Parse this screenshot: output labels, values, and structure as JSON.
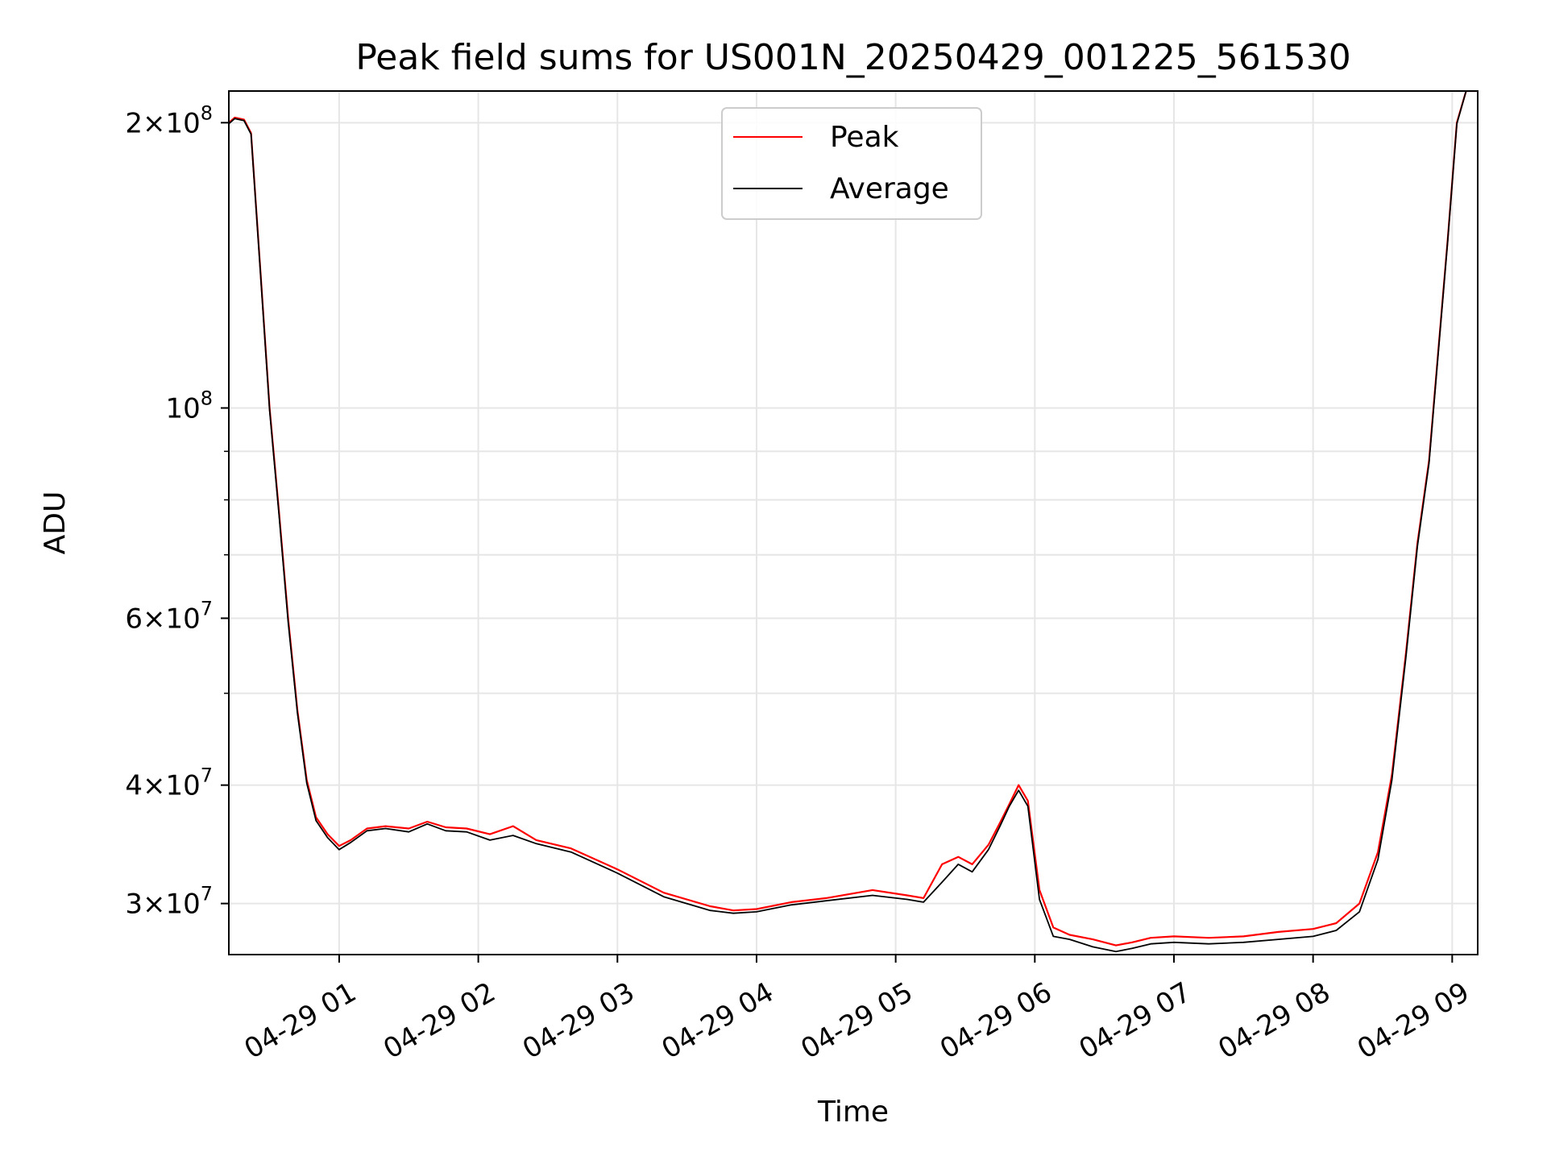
{
  "chart_data": {
    "type": "line",
    "title": "Peak field sums for US001N_20250429_001225_561530",
    "xlabel": "Time",
    "ylabel": "ADU",
    "y_scale": "log",
    "ylim": [
      26500000,
      216000000
    ],
    "xlim": [
      "2025-04-29 00:12:25",
      "2025-04-29 09:11:00"
    ],
    "grid": true,
    "legend_position": "upper-center",
    "x_ticks": [
      {
        "at": "2025-04-29 01:00",
        "label": "04-29 01"
      },
      {
        "at": "2025-04-29 02:00",
        "label": "04-29 02"
      },
      {
        "at": "2025-04-29 03:00",
        "label": "04-29 03"
      },
      {
        "at": "2025-04-29 04:00",
        "label": "04-29 04"
      },
      {
        "at": "2025-04-29 05:00",
        "label": "04-29 05"
      },
      {
        "at": "2025-04-29 06:00",
        "label": "04-29 06"
      },
      {
        "at": "2025-04-29 07:00",
        "label": "04-29 07"
      },
      {
        "at": "2025-04-29 08:00",
        "label": "04-29 08"
      },
      {
        "at": "2025-04-29 09:00",
        "label": "04-29 09"
      }
    ],
    "y_ticks_major": [
      {
        "value": 30000000,
        "mantissa": "3",
        "exponent": "7"
      },
      {
        "value": 40000000,
        "mantissa": "4",
        "exponent": "7"
      },
      {
        "value": 60000000,
        "mantissa": "6",
        "exponent": "7"
      },
      {
        "value": 100000000,
        "mantissa": "",
        "exponent": "8"
      },
      {
        "value": 200000000,
        "mantissa": "2",
        "exponent": "8"
      }
    ],
    "y_ticks_minor": [
      50000000,
      70000000,
      80000000,
      90000000
    ],
    "series": [
      {
        "name": "Peak",
        "color": "#ff0000",
        "x": [
          "2025-04-29 00:12:25",
          "2025-04-29 00:15",
          "2025-04-29 00:19",
          "2025-04-29 00:22",
          "2025-04-29 00:26",
          "2025-04-29 00:30",
          "2025-04-29 00:34",
          "2025-04-29 00:38",
          "2025-04-29 00:42",
          "2025-04-29 00:46",
          "2025-04-29 00:50",
          "2025-04-29 00:55",
          "2025-04-29 01:00",
          "2025-04-29 01:05",
          "2025-04-29 01:12",
          "2025-04-29 01:20",
          "2025-04-29 01:30",
          "2025-04-29 01:38",
          "2025-04-29 01:46",
          "2025-04-29 01:55",
          "2025-04-29 02:05",
          "2025-04-29 02:15",
          "2025-04-29 02:25",
          "2025-04-29 02:40",
          "2025-04-29 03:00",
          "2025-04-29 03:20",
          "2025-04-29 03:40",
          "2025-04-29 03:50",
          "2025-04-29 04:00",
          "2025-04-29 04:15",
          "2025-04-29 04:30",
          "2025-04-29 04:50",
          "2025-04-29 05:05",
          "2025-04-29 05:12",
          "2025-04-29 05:20",
          "2025-04-29 05:27",
          "2025-04-29 05:33",
          "2025-04-29 05:40",
          "2025-04-29 05:45",
          "2025-04-29 05:49",
          "2025-04-29 05:53",
          "2025-04-29 05:57",
          "2025-04-29 06:02",
          "2025-04-29 06:08",
          "2025-04-29 06:15",
          "2025-04-29 06:25",
          "2025-04-29 06:35",
          "2025-04-29 06:42",
          "2025-04-29 06:50",
          "2025-04-29 07:00",
          "2025-04-29 07:15",
          "2025-04-29 07:30",
          "2025-04-29 07:45",
          "2025-04-29 08:00",
          "2025-04-29 08:10",
          "2025-04-29 08:20",
          "2025-04-29 08:28",
          "2025-04-29 08:34",
          "2025-04-29 08:40",
          "2025-04-29 08:45",
          "2025-04-29 08:50",
          "2025-04-29 08:54",
          "2025-04-29 08:58",
          "2025-04-29 09:02",
          "2025-04-29 09:06",
          "2025-04-29 09:11"
        ],
        "y": [
          200000000,
          202500000,
          201500000,
          195000000,
          140000000,
          100000000,
          78000000,
          60000000,
          48000000,
          40500000,
          37000000,
          35500000,
          34500000,
          35000000,
          36000000,
          36200000,
          36000000,
          36600000,
          36100000,
          36000000,
          35500000,
          36200000,
          35000000,
          34300000,
          32600000,
          30800000,
          29800000,
          29500000,
          29600000,
          30100000,
          30400000,
          31000000,
          30600000,
          30400000,
          33000000,
          33600000,
          33000000,
          34600000,
          36500000,
          38200000,
          40000000,
          38500000,
          31000000,
          28300000,
          27800000,
          27500000,
          27100000,
          27300000,
          27600000,
          27700000,
          27600000,
          27700000,
          28000000,
          28200000,
          28600000,
          30000000,
          34000000,
          41000000,
          55000000,
          72000000,
          88000000,
          115000000,
          150000000,
          200000000,
          216000000,
          216000000
        ]
      },
      {
        "name": "Average",
        "color": "#000000",
        "x": [
          "2025-04-29 00:12:25",
          "2025-04-29 00:15",
          "2025-04-29 00:19",
          "2025-04-29 00:22",
          "2025-04-29 00:26",
          "2025-04-29 00:30",
          "2025-04-29 00:34",
          "2025-04-29 00:38",
          "2025-04-29 00:42",
          "2025-04-29 00:46",
          "2025-04-29 00:50",
          "2025-04-29 00:55",
          "2025-04-29 01:00",
          "2025-04-29 01:05",
          "2025-04-29 01:12",
          "2025-04-29 01:20",
          "2025-04-29 01:30",
          "2025-04-29 01:38",
          "2025-04-29 01:46",
          "2025-04-29 01:55",
          "2025-04-29 02:05",
          "2025-04-29 02:15",
          "2025-04-29 02:25",
          "2025-04-29 02:40",
          "2025-04-29 03:00",
          "2025-04-29 03:20",
          "2025-04-29 03:40",
          "2025-04-29 03:50",
          "2025-04-29 04:00",
          "2025-04-29 04:15",
          "2025-04-29 04:30",
          "2025-04-29 04:50",
          "2025-04-29 05:05",
          "2025-04-29 05:12",
          "2025-04-29 05:20",
          "2025-04-29 05:27",
          "2025-04-29 05:33",
          "2025-04-29 05:40",
          "2025-04-29 05:45",
          "2025-04-29 05:49",
          "2025-04-29 05:53",
          "2025-04-29 05:57",
          "2025-04-29 06:02",
          "2025-04-29 06:08",
          "2025-04-29 06:15",
          "2025-04-29 06:25",
          "2025-04-29 06:35",
          "2025-04-29 06:42",
          "2025-04-29 06:50",
          "2025-04-29 07:00",
          "2025-04-29 07:15",
          "2025-04-29 07:30",
          "2025-04-29 07:45",
          "2025-04-29 08:00",
          "2025-04-29 08:10",
          "2025-04-29 08:20",
          "2025-04-29 08:28",
          "2025-04-29 08:34",
          "2025-04-29 08:40",
          "2025-04-29 08:45",
          "2025-04-29 08:50",
          "2025-04-29 08:54",
          "2025-04-29 08:58",
          "2025-04-29 09:02",
          "2025-04-29 09:06",
          "2025-04-29 09:11"
        ],
        "y": [
          199500000,
          202000000,
          201000000,
          194500000,
          139500000,
          99500000,
          77500000,
          59500000,
          47700000,
          40200000,
          36700000,
          35200000,
          34200000,
          34800000,
          35800000,
          36000000,
          35700000,
          36400000,
          35800000,
          35700000,
          35000000,
          35400000,
          34700000,
          34000000,
          32300000,
          30500000,
          29500000,
          29300000,
          29400000,
          29900000,
          30200000,
          30600000,
          30300000,
          30100000,
          31600000,
          33000000,
          32400000,
          34200000,
          36200000,
          38000000,
          39500000,
          38000000,
          30300000,
          27700000,
          27500000,
          27000000,
          26700000,
          26900000,
          27200000,
          27300000,
          27200000,
          27300000,
          27500000,
          27700000,
          28100000,
          29400000,
          33400000,
          40500000,
          54500000,
          71500000,
          87500000,
          114500000,
          149500000,
          199500000,
          216000000,
          216000000
        ]
      }
    ]
  }
}
